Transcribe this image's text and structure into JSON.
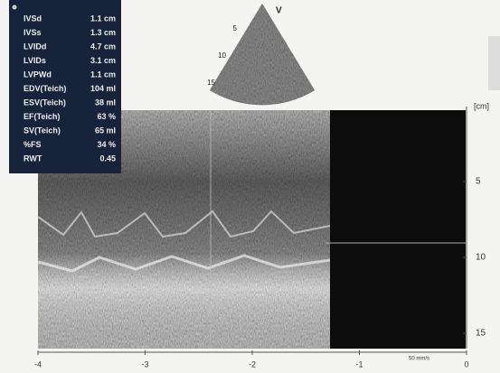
{
  "measurements": [
    {
      "label": "IVSd",
      "value": "1.1 cm"
    },
    {
      "label": "IVSs",
      "value": "1.3 cm"
    },
    {
      "label": "LVIDd",
      "value": "4.7 cm"
    },
    {
      "label": "LVIDs",
      "value": "3.1 cm"
    },
    {
      "label": "LVPWd",
      "value": "1.1 cm"
    },
    {
      "label": "EDV(Teich)",
      "value": "104 ml"
    },
    {
      "label": "ESV(Teich)",
      "value": "38 ml"
    },
    {
      "label": "EF(Teich)",
      "value": "63 %"
    },
    {
      "label": "SV(Teich)",
      "value": "65 ml"
    },
    {
      "label": "%FS",
      "value": "34 %"
    },
    {
      "label": "RWT",
      "value": "0.45"
    }
  ],
  "fan": {
    "marker": "V",
    "depths": [
      "5",
      "10",
      "15"
    ]
  },
  "depth_axis": {
    "unit": "[cm]",
    "labels": [
      "5",
      "10",
      "15"
    ]
  },
  "time_axis": {
    "labels": [
      "-4",
      "-3",
      "-2",
      "-1",
      "0"
    ],
    "speed": "50 mm/s"
  }
}
